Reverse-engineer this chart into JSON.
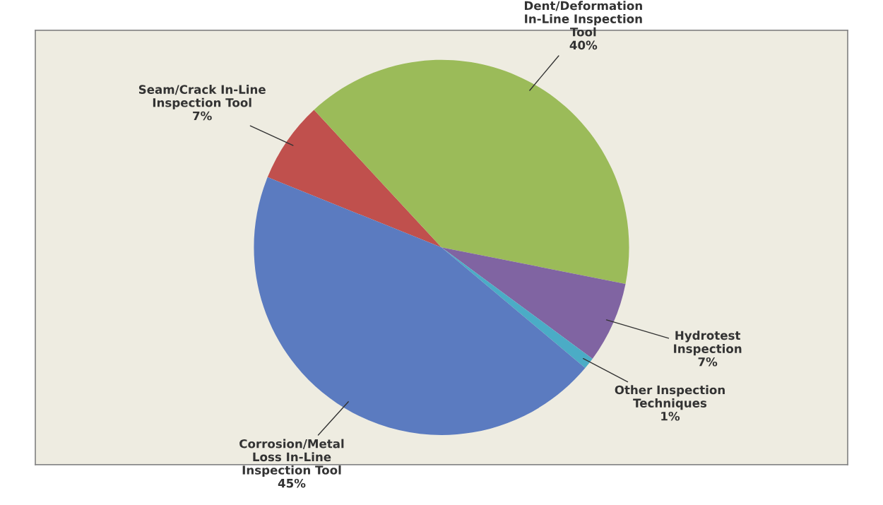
{
  "chart_data": {
    "type": "pie",
    "categories": [
      "Seam/Crack In-Line\nInspection Tool",
      "Dent/Deformation\nIn-Line Inspection\nTool",
      "Hydrotest\nInspection",
      "Other Inspection\nTechniques",
      "Corrosion/Metal\nLoss In-Line\nInspection Tool"
    ],
    "values": [
      7,
      40,
      7,
      1,
      45
    ],
    "value_labels": [
      "7%",
      "40%",
      "7%",
      "1%",
      "45%"
    ],
    "colors": [
      "#c0504d",
      "#9bbb59",
      "#8064a2",
      "#4bacc6",
      "#5b7bc0"
    ]
  }
}
